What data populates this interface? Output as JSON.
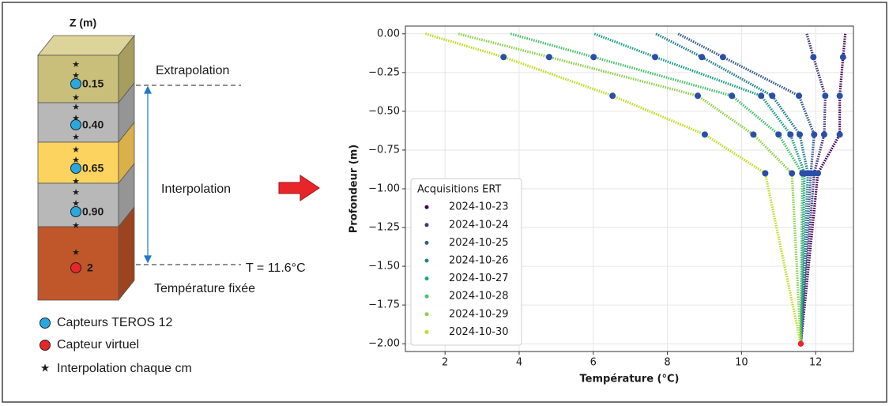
{
  "diagram": {
    "axis_title": "Z (m)",
    "sensor_labels": [
      "0.15",
      "0.40",
      "0.65",
      "0.90"
    ],
    "virtual_label": "2",
    "annotations": {
      "extrapolation": "Extrapolation",
      "interpolation": "Interpolation",
      "fixed_temperature": "T = 11.6°C",
      "fixed_label": "Température fixée"
    },
    "legend": [
      "Capteurs TEROS 12",
      "Capteur virtuel",
      "Interpolation chaque cm"
    ]
  },
  "chart_data": {
    "type": "line",
    "xlabel": "Température (°C)",
    "ylabel": "Profondeur (m)",
    "depths": [
      0,
      -0.15,
      -0.4,
      -0.65,
      -0.9,
      -2
    ],
    "series": [
      {
        "name": "2024-10-23",
        "color": "#440154",
        "values": [
          12.8,
          12.74,
          12.65,
          12.65,
          12.06,
          11.6
        ]
      },
      {
        "name": "2024-10-24",
        "color": "#46327e",
        "values": [
          11.76,
          11.94,
          12.26,
          12.23,
          11.96,
          11.6
        ]
      },
      {
        "name": "2024-10-25",
        "color": "#365c8d",
        "values": [
          8.29,
          9.5,
          11.55,
          11.96,
          11.87,
          11.6
        ]
      },
      {
        "name": "2024-10-26",
        "color": "#277f8e",
        "values": [
          7.69,
          8.93,
          10.83,
          11.57,
          11.79,
          11.6
        ]
      },
      {
        "name": "2024-10-27",
        "color": "#1fa187",
        "values": [
          6.03,
          7.67,
          10.53,
          11.32,
          11.7,
          11.6
        ]
      },
      {
        "name": "2024-10-28",
        "color": "#4ac16d",
        "values": [
          3.77,
          6.01,
          9.74,
          11.0,
          11.64,
          11.6
        ]
      },
      {
        "name": "2024-10-29",
        "color": "#8fd14f",
        "values": [
          2.36,
          4.81,
          8.82,
          10.32,
          11.36,
          11.6
        ]
      },
      {
        "name": "2024-10-30",
        "color": "#bddf26",
        "values": [
          1.47,
          3.58,
          6.52,
          9.01,
          10.64,
          11.6
        ]
      }
    ],
    "sensor_color": "#2b4ea8",
    "virtual_sensor_color": "#e8262a",
    "xlim": [
      0.93,
      13.02
    ],
    "xticks": [
      2,
      4,
      6,
      8,
      10,
      12
    ],
    "ylim": [
      -2.05,
      0.05
    ],
    "yticks": [
      {
        "value": 0,
        "label": "0.00"
      },
      {
        "value": -0.25,
        "label": "−0.25"
      },
      {
        "value": -0.5,
        "label": "−0.50"
      },
      {
        "value": -0.75,
        "label": "−0.75"
      },
      {
        "value": -1,
        "label": "−1.00"
      },
      {
        "value": -1.25,
        "label": "−1.25"
      },
      {
        "value": -1.5,
        "label": "−1.50"
      },
      {
        "value": -1.75,
        "label": "−1.75"
      },
      {
        "value": -2,
        "label": "−2.00"
      }
    ],
    "grid": true,
    "legend": {
      "title": "Acquisitions ERT",
      "loc": "lower left"
    }
  }
}
